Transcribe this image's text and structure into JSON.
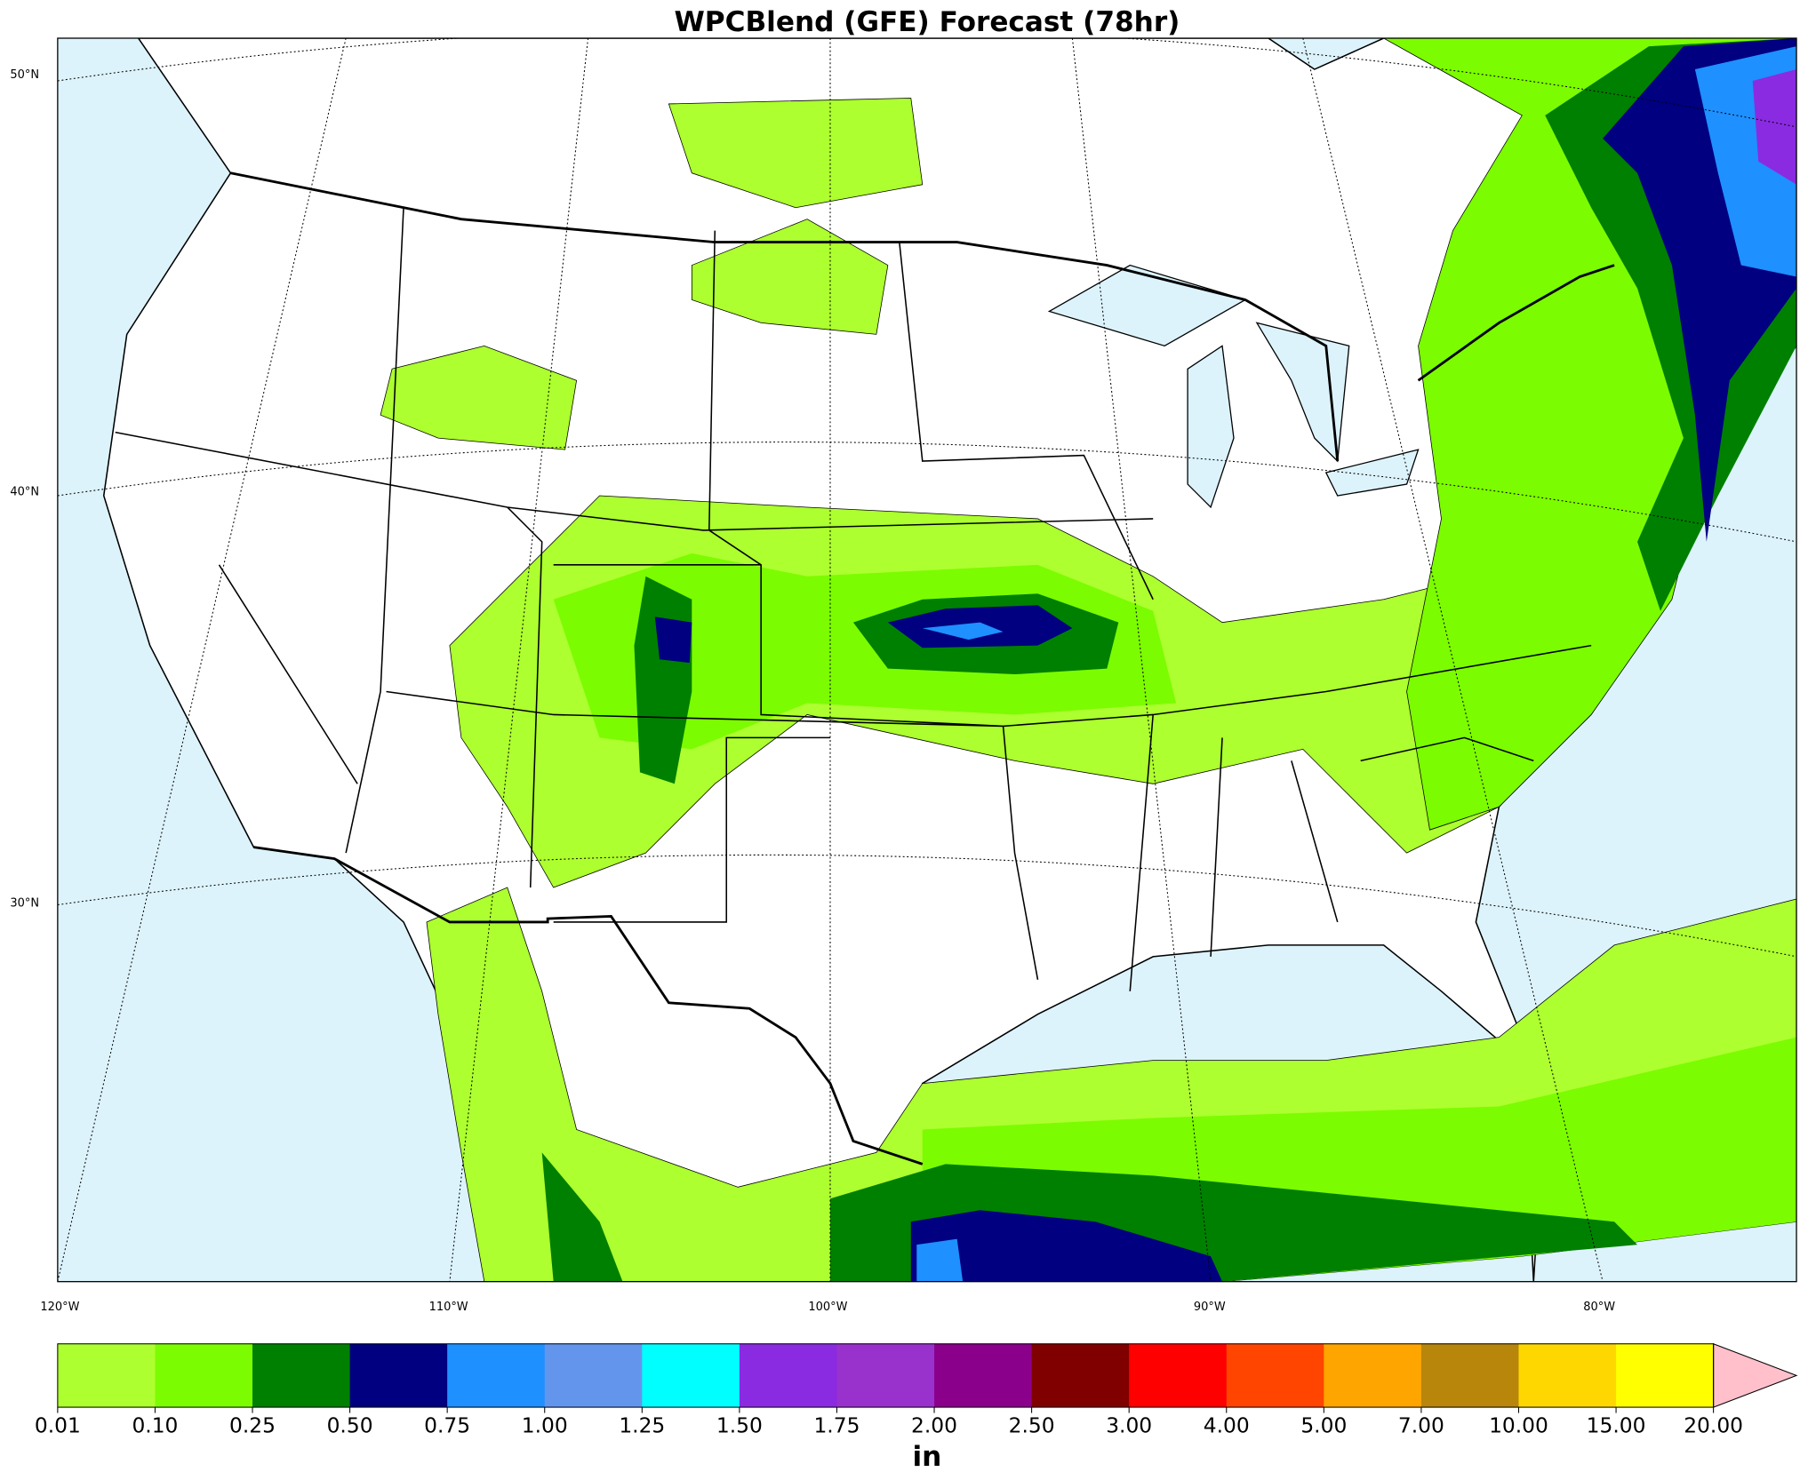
{
  "title": "WPCBlend (GFE) Forecast (78hr)",
  "map": {
    "lat_labels": [
      "50°N",
      "40°N",
      "30°N"
    ],
    "lon_labels": [
      "120°W",
      "110°W",
      "100°W",
      "90°W",
      "80°W"
    ]
  },
  "colorbar": {
    "ticks": [
      {
        "value": 0.01,
        "label": "0.01"
      },
      {
        "value": 0.1,
        "label": "0.10"
      },
      {
        "value": 0.25,
        "label": "0.25"
      },
      {
        "value": 0.5,
        "label": "0.50"
      },
      {
        "value": 0.75,
        "label": "0.75"
      },
      {
        "value": 1,
        "label": "1.00"
      },
      {
        "value": 1.25,
        "label": "1.25"
      },
      {
        "value": 1.5,
        "label": "1.50"
      },
      {
        "value": 1.75,
        "label": "1.75"
      },
      {
        "value": 2,
        "label": "2.00"
      },
      {
        "value": 2.5,
        "label": "2.50"
      },
      {
        "value": 3,
        "label": "3.00"
      },
      {
        "value": 4,
        "label": "4.00"
      },
      {
        "value": 5,
        "label": "5.00"
      },
      {
        "value": 7,
        "label": "7.00"
      },
      {
        "value": 10,
        "label": "10.00"
      },
      {
        "value": 15,
        "label": "15.00"
      },
      {
        "value": 20,
        "label": "20.00"
      }
    ],
    "colors": [
      "#adff2f",
      "#7cfc00",
      "#008000",
      "#000080",
      "#1e90ff",
      "#6495ed",
      "#00ffff",
      "#8a2be2",
      "#9932cc",
      "#8b008b",
      "#800000",
      "#ff0000",
      "#ff4500",
      "#ffa500",
      "#b8860b",
      "#ffd700",
      "#ffff00"
    ],
    "extend_color": "#ffc0cb",
    "label": "in"
  }
}
